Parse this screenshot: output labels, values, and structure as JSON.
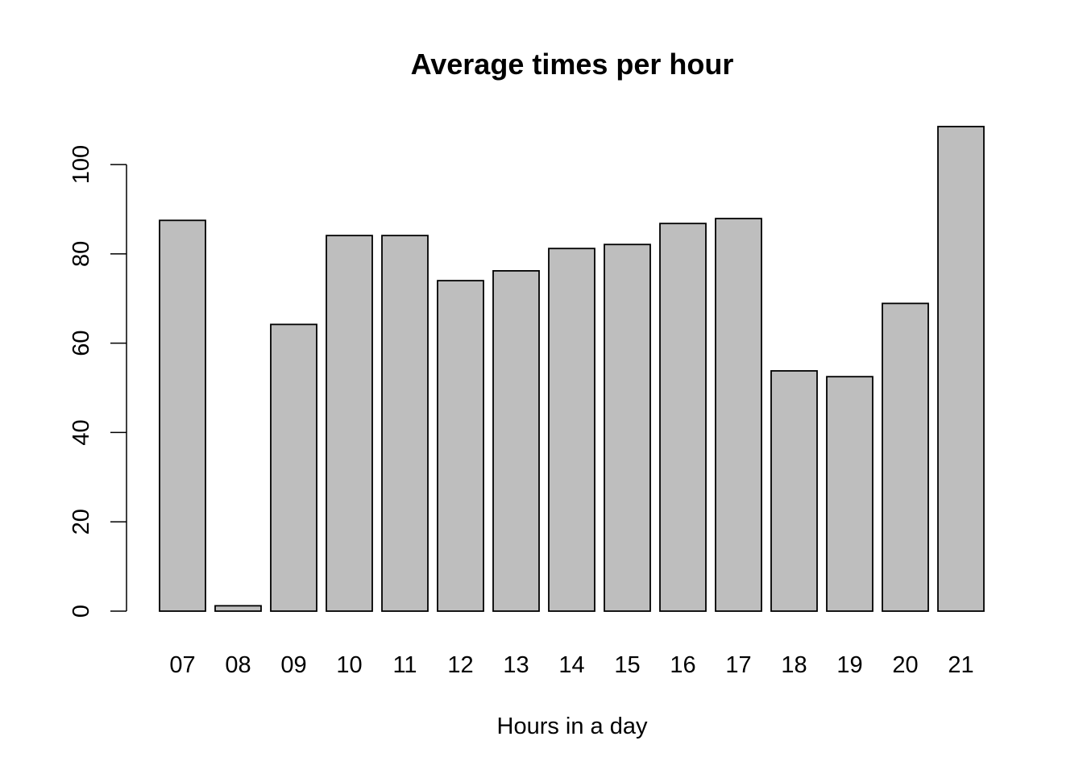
{
  "chart_data": {
    "type": "bar",
    "title": "Average times per hour",
    "xlabel": "Hours in a day",
    "ylabel": "",
    "categories": [
      "07",
      "08",
      "09",
      "10",
      "11",
      "12",
      "13",
      "14",
      "15",
      "16",
      "17",
      "18",
      "19",
      "20",
      "21"
    ],
    "values": [
      87.5,
      1.2,
      64.2,
      84.1,
      84.1,
      74.0,
      76.2,
      81.2,
      82.1,
      86.8,
      87.9,
      53.8,
      52.5,
      68.9,
      108.5
    ],
    "ylim": [
      0,
      108.5
    ],
    "yticks": [
      0,
      20,
      40,
      60,
      80,
      100
    ],
    "bar_color": "#bebebe",
    "bar_border_color": "#000000",
    "grid": false,
    "legend": "none"
  }
}
